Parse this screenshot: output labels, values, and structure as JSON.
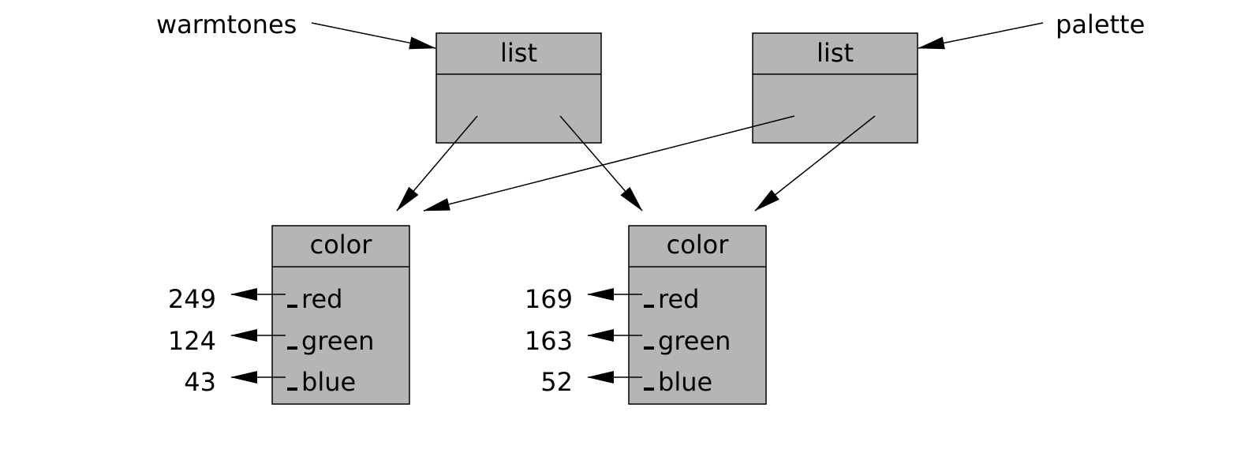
{
  "variables": {
    "warmtones": "warmtones",
    "palette": "palette"
  },
  "lists": {
    "left": {
      "type": "list"
    },
    "right": {
      "type": "list"
    }
  },
  "colors": {
    "left": {
      "type": "color",
      "fields": [
        {
          "name": "red",
          "value": "249"
        },
        {
          "name": "green",
          "value": "124"
        },
        {
          "name": "blue",
          "value": "43"
        }
      ]
    },
    "right": {
      "type": "color",
      "fields": [
        {
          "name": "red",
          "value": "169"
        },
        {
          "name": "green",
          "value": "163"
        },
        {
          "name": "blue",
          "value": "52"
        }
      ]
    }
  }
}
